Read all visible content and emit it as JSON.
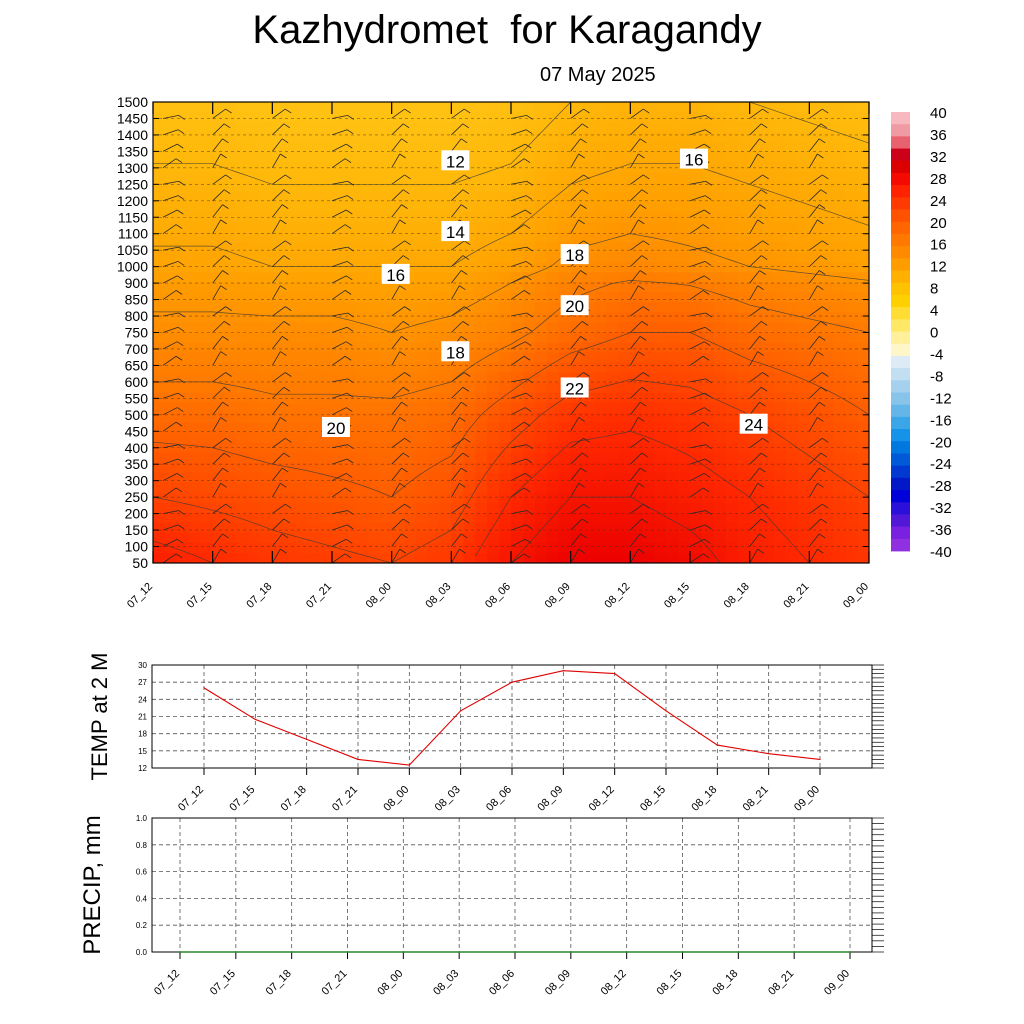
{
  "header": {
    "title": "Kazhydromet  for Karagandy",
    "date": "07 May 2025"
  },
  "colors": {
    "temperature_line": "#e00000",
    "precip_line": "#2a8a2a",
    "contour": "#3a3a3a"
  },
  "chart_data": [
    {
      "type": "heatmap",
      "title": "",
      "xlabel": "",
      "ylabel": "",
      "x_ticks": [
        "07_12",
        "07_15",
        "07_18",
        "07_21",
        "08_00",
        "08_03",
        "08_06",
        "08_09",
        "08_12",
        "08_15",
        "08_18",
        "08_21",
        "09_00"
      ],
      "y_ticks": [
        50,
        100,
        150,
        200,
        250,
        300,
        350,
        400,
        450,
        500,
        550,
        600,
        650,
        700,
        750,
        800,
        850,
        900,
        1000,
        1050,
        1100,
        1150,
        1200,
        1250,
        1300,
        1350,
        1400,
        1450,
        1500
      ],
      "colorbar": {
        "labels": [
          40,
          36,
          32,
          28,
          24,
          20,
          16,
          12,
          8,
          4,
          0,
          -4,
          -8,
          -12,
          -16,
          -20,
          -24,
          -28,
          -32,
          -36,
          -40
        ],
        "colors": [
          "#f8b8c0",
          "#f09aa3",
          "#e8616e",
          "#cc0018",
          "#dd0000",
          "#f40a00",
          "#ff2200",
          "#ff3a00",
          "#ff5200",
          "#ff6600",
          "#ff7800",
          "#ff8a00",
          "#ff9c00",
          "#ffb000",
          "#ffc200",
          "#ffd000",
          "#ffdd33",
          "#ffe866",
          "#fff099",
          "#fff6c8",
          "#dcebf6",
          "#c2dff2",
          "#a6d1ee",
          "#88c4ea",
          "#64b5e8",
          "#3aa6e8",
          "#1493e8",
          "#0078e0",
          "#005ad8",
          "#0038d0",
          "#0018c8",
          "#0000d8",
          "#2a10d8",
          "#5218d8",
          "#7a20e0",
          "#9030e0"
        ]
      },
      "contour_labels": [
        {
          "text": "12",
          "x": "08_03",
          "y": 1320
        },
        {
          "text": "14",
          "x": "08_03",
          "y": 1105
        },
        {
          "text": "16",
          "x": "08_00",
          "y": 950
        },
        {
          "text": "18",
          "x": "08_03",
          "y": 690
        },
        {
          "text": "20",
          "x": "07_21",
          "y": 460
        },
        {
          "text": "22",
          "x": "08_09",
          "y": 580
        },
        {
          "text": "20",
          "x": "08_09",
          "y": 830
        },
        {
          "text": "18",
          "x": "08_09",
          "y": 1035
        },
        {
          "text": "16",
          "x": "08_15",
          "y": 1325
        },
        {
          "text": "24",
          "x": "08_18",
          "y": 470
        }
      ],
      "temperature_field": {
        "levels": [
          50,
          250,
          500,
          750,
          1000,
          1250,
          1500
        ],
        "times": [
          "07_12",
          "07_15",
          "07_18",
          "07_21",
          "08_00",
          "08_03",
          "08_06",
          "08_09",
          "08_12",
          "08_15",
          "08_18",
          "08_21",
          "09_00"
        ],
        "values_by_level": [
          [
            27,
            26,
            25,
            24.5,
            24,
            25,
            28,
            30,
            30,
            29,
            27,
            26,
            25
          ],
          [
            24,
            23.5,
            23,
            22.5,
            22,
            23,
            26,
            28,
            28,
            27,
            26,
            25,
            24
          ],
          [
            21,
            21,
            20.5,
            20.5,
            20.5,
            21,
            23,
            25,
            25.5,
            25,
            24,
            23,
            22
          ],
          [
            18.5,
            18.5,
            18.5,
            18.5,
            18,
            18.5,
            19.5,
            21,
            22,
            22,
            21,
            20.5,
            20
          ],
          [
            16.5,
            16.5,
            16,
            16,
            16,
            16,
            17,
            18.5,
            19,
            18.5,
            18,
            17.5,
            17
          ],
          [
            14.5,
            14.5,
            14,
            14,
            14,
            14,
            14.5,
            16,
            16.5,
            16.5,
            16,
            15.5,
            15
          ],
          [
            12.5,
            12.5,
            12,
            12,
            12,
            12,
            12.5,
            14,
            14.5,
            14.5,
            14,
            13.5,
            13
          ]
        ]
      }
    },
    {
      "type": "line",
      "title": "",
      "xlabel": "",
      "ylabel": "TEMP at 2 M",
      "categories": [
        "07_12",
        "07_15",
        "07_18",
        "07_21",
        "08_00",
        "08_03",
        "08_06",
        "08_09",
        "08_12",
        "08_15",
        "08_18",
        "08_21",
        "09_00"
      ],
      "y_ticks": [
        12,
        15,
        18,
        21,
        24,
        27,
        30
      ],
      "ylim": [
        12,
        30
      ],
      "grid": true,
      "series": [
        {
          "values": [
            26,
            20.5,
            17,
            13.5,
            12.5,
            22,
            27,
            29,
            28.5,
            22,
            16,
            14.5,
            13.5
          ]
        }
      ]
    },
    {
      "type": "line",
      "title": "",
      "xlabel": "",
      "ylabel": "PRECIP, mm",
      "categories": [
        "07_12",
        "07_15",
        "07_18",
        "07_21",
        "08_00",
        "08_03",
        "08_06",
        "08_09",
        "08_12",
        "08_15",
        "08_18",
        "08_21",
        "09_00"
      ],
      "y_ticks": [
        "0.0",
        "0.2",
        "0.4",
        "0.6",
        "0.8",
        "1.0"
      ],
      "ylim": [
        0,
        1
      ],
      "grid": true,
      "series": [
        {
          "values": [
            0,
            0,
            0,
            0,
            0,
            0,
            0,
            0,
            0,
            0,
            0,
            0,
            0
          ]
        }
      ]
    }
  ]
}
